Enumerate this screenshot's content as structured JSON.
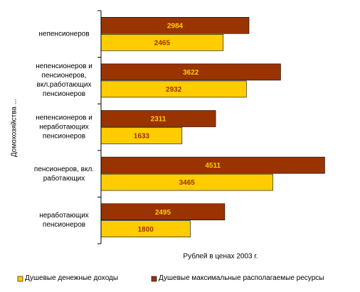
{
  "chart_data": {
    "type": "barh",
    "x_label": "Рублей в ценах 2003 г.",
    "y_label": "Домохозяйства ...",
    "categories": [
      "непенсионеров",
      "непенсионеров и пенсионеров, вкл.работающих пенсионеров",
      "непенсионеров и неработающих пенсионеров",
      "пенсионеров, вкл. работающих",
      "неработающих пенсионеров"
    ],
    "series": [
      {
        "name": "Душевые денежные доходы",
        "color": "#ffcc00",
        "values": [
          2465,
          2932,
          1633,
          3465,
          1800
        ]
      },
      {
        "name": "Душевые максимальные располагаемые ресурсы",
        "color": "#993300",
        "values": [
          2984,
          3622,
          2311,
          4511,
          2495
        ]
      }
    ],
    "xlim": [
      0,
      5000
    ],
    "legend": "bottom"
  }
}
